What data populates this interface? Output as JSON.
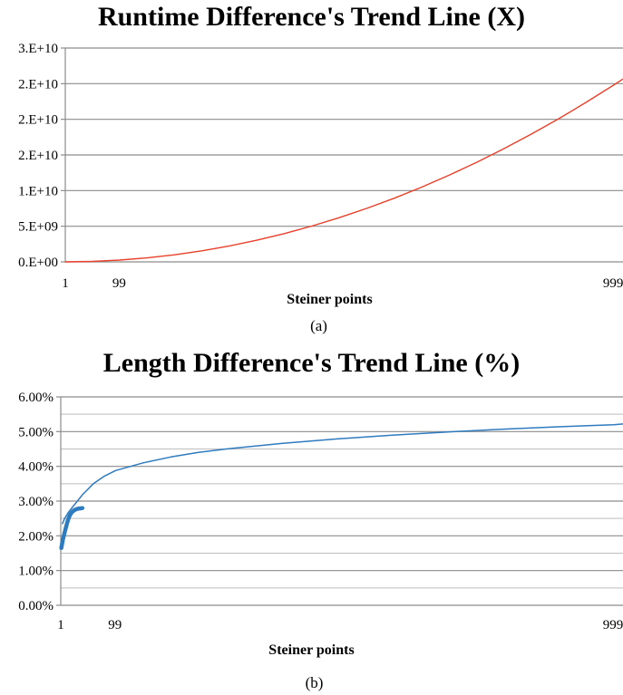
{
  "chart_data": [
    {
      "type": "line",
      "title": "Runtime Difference's Trend Line (X)",
      "xlabel": "Steiner points",
      "ylabel": "",
      "caption": "(a)",
      "x_tick_labels": [
        "1",
        "99",
        "999"
      ],
      "x_range": [
        1,
        1017
      ],
      "y_tick_labels": [
        "0.E+00",
        "5.E+09",
        "1.E+10",
        "2.E+10",
        "2.E+10",
        "2.E+10",
        "3.E+10"
      ],
      "ylim": [
        0,
        30000000000
      ],
      "grid": true,
      "colors": {
        "line": "#e8402a",
        "grid": "#8c8c8c"
      },
      "series": [
        {
          "x": [
            1,
            50,
            100,
            150,
            200,
            250,
            300,
            350,
            400,
            450,
            500,
            550,
            600,
            650,
            700,
            750,
            800,
            850,
            900,
            950,
            1000,
            1017
          ],
          "y": [
            0,
            62000000,
            248000000,
            558000000,
            992000000,
            1550000000,
            2232000000,
            3038000000,
            3968000000,
            5022000000,
            6200000000,
            7502000000,
            8928000000,
            10478000000,
            12152000000,
            13950000000,
            15872000000,
            17918000000,
            20088000000,
            22382000000,
            24800000000,
            25650000000
          ]
        }
      ]
    },
    {
      "type": "line",
      "title": "Length Difference's Trend Line (%)",
      "xlabel": "Steiner points",
      "ylabel": "",
      "caption": "(b)",
      "x_tick_labels": [
        "1",
        "99",
        "999"
      ],
      "x_range": [
        1,
        1017
      ],
      "y_tick_labels": [
        "0.00%",
        "1.00%",
        "2.00%",
        "3.00%",
        "4.00%",
        "5.00%",
        "6.00%"
      ],
      "ylim": [
        0,
        6
      ],
      "grid": true,
      "minor_grid": true,
      "colors": {
        "line": "#2e7bbf",
        "grid": "#8c8c8c"
      },
      "series": [
        {
          "x": [
            4,
            8,
            15,
            20,
            30,
            40,
            60,
            80,
            100,
            150,
            200,
            250,
            300,
            400,
            500,
            600,
            700,
            800,
            900,
            1000,
            1017
          ],
          "y": [
            2.35,
            2.5,
            2.68,
            2.78,
            2.98,
            3.18,
            3.5,
            3.72,
            3.88,
            4.1,
            4.27,
            4.4,
            4.5,
            4.66,
            4.79,
            4.9,
            4.99,
            5.07,
            5.14,
            5.2,
            5.22
          ]
        },
        {
          "x": [
            2,
            5,
            8,
            11,
            14,
            17,
            20,
            24,
            28,
            32,
            36,
            40
          ],
          "y": [
            1.65,
            1.9,
            2.1,
            2.28,
            2.45,
            2.58,
            2.66,
            2.72,
            2.76,
            2.78,
            2.79,
            2.8
          ]
        }
      ]
    }
  ]
}
